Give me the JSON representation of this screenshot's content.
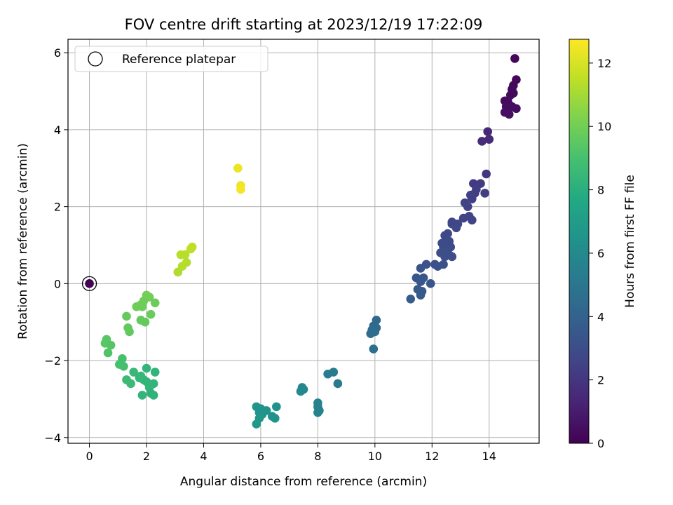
{
  "chart_data": {
    "type": "scatter",
    "title": "FOV centre drift starting at 2023/12/19 17:22:09",
    "xlabel": "Angular distance from reference (arcmin)",
    "ylabel": "Rotation from reference (arcmin)",
    "xlim": [
      -0.75,
      15.75
    ],
    "ylim": [
      -4.15,
      6.35
    ],
    "xticks": [
      "0",
      "2",
      "4",
      "6",
      "8",
      "10",
      "12",
      "14"
    ],
    "yticks": [
      "−4",
      "−2",
      "0",
      "2",
      "4",
      "6"
    ],
    "grid": true,
    "legend": {
      "placement": "top-left",
      "entries": [
        "Reference platepar"
      ]
    },
    "colorbar": {
      "label": "Hours from first FF file",
      "colormap": "viridis",
      "range": [
        0,
        12.75
      ],
      "ticks": [
        "0",
        "2",
        "4",
        "6",
        "8",
        "10",
        "12"
      ]
    },
    "reference_point": {
      "x": 0,
      "y": 0
    },
    "points": [
      {
        "x": 14.9,
        "y": 5.85,
        "c": 0.2
      },
      {
        "x": 14.95,
        "y": 5.3,
        "c": 0.25
      },
      {
        "x": 14.85,
        "y": 5.15,
        "c": 0.3
      },
      {
        "x": 14.8,
        "y": 5.05,
        "c": 0.3
      },
      {
        "x": 14.75,
        "y": 4.9,
        "c": 0.35
      },
      {
        "x": 14.85,
        "y": 4.95,
        "c": 0.3
      },
      {
        "x": 14.65,
        "y": 4.75,
        "c": 0.4
      },
      {
        "x": 14.55,
        "y": 4.75,
        "c": 0.4
      },
      {
        "x": 14.7,
        "y": 4.65,
        "c": 0.4
      },
      {
        "x": 14.6,
        "y": 4.6,
        "c": 0.45
      },
      {
        "x": 14.8,
        "y": 4.6,
        "c": 0.45
      },
      {
        "x": 14.95,
        "y": 4.55,
        "c": 0.45
      },
      {
        "x": 14.55,
        "y": 4.45,
        "c": 0.5
      },
      {
        "x": 14.7,
        "y": 4.4,
        "c": 0.5
      },
      {
        "x": 13.95,
        "y": 3.95,
        "c": 1.4
      },
      {
        "x": 14.0,
        "y": 3.75,
        "c": 1.5
      },
      {
        "x": 13.75,
        "y": 3.7,
        "c": 1.6
      },
      {
        "x": 13.9,
        "y": 2.85,
        "c": 2.0
      },
      {
        "x": 13.45,
        "y": 2.6,
        "c": 2.2
      },
      {
        "x": 13.7,
        "y": 2.6,
        "c": 2.2
      },
      {
        "x": 13.55,
        "y": 2.45,
        "c": 2.3
      },
      {
        "x": 13.5,
        "y": 2.35,
        "c": 2.3
      },
      {
        "x": 13.85,
        "y": 2.35,
        "c": 2.3
      },
      {
        "x": 13.35,
        "y": 2.3,
        "c": 2.4
      },
      {
        "x": 13.4,
        "y": 2.2,
        "c": 2.4
      },
      {
        "x": 13.15,
        "y": 2.1,
        "c": 2.5
      },
      {
        "x": 13.25,
        "y": 2.0,
        "c": 2.5
      },
      {
        "x": 13.1,
        "y": 1.7,
        "c": 2.6
      },
      {
        "x": 13.3,
        "y": 1.75,
        "c": 2.6
      },
      {
        "x": 13.4,
        "y": 1.65,
        "c": 2.6
      },
      {
        "x": 12.7,
        "y": 1.6,
        "c": 2.7
      },
      {
        "x": 12.7,
        "y": 1.55,
        "c": 2.7
      },
      {
        "x": 12.9,
        "y": 1.55,
        "c": 2.7
      },
      {
        "x": 12.85,
        "y": 1.45,
        "c": 2.8
      },
      {
        "x": 12.55,
        "y": 1.3,
        "c": 2.8
      },
      {
        "x": 12.45,
        "y": 1.25,
        "c": 2.8
      },
      {
        "x": 12.35,
        "y": 1.05,
        "c": 2.9
      },
      {
        "x": 12.6,
        "y": 1.1,
        "c": 2.9
      },
      {
        "x": 12.4,
        "y": 0.95,
        "c": 2.9
      },
      {
        "x": 12.65,
        "y": 0.95,
        "c": 2.9
      },
      {
        "x": 12.5,
        "y": 0.85,
        "c": 3.0
      },
      {
        "x": 12.3,
        "y": 0.8,
        "c": 3.0
      },
      {
        "x": 12.6,
        "y": 0.75,
        "c": 3.0
      },
      {
        "x": 12.45,
        "y": 0.7,
        "c": 3.0
      },
      {
        "x": 12.7,
        "y": 0.7,
        "c": 3.0
      },
      {
        "x": 11.8,
        "y": 0.5,
        "c": 3.2
      },
      {
        "x": 12.1,
        "y": 0.5,
        "c": 3.1
      },
      {
        "x": 12.4,
        "y": 0.5,
        "c": 3.1
      },
      {
        "x": 12.2,
        "y": 0.45,
        "c": 3.1
      },
      {
        "x": 11.6,
        "y": 0.4,
        "c": 3.3
      },
      {
        "x": 11.45,
        "y": 0.15,
        "c": 3.4
      },
      {
        "x": 11.7,
        "y": 0.15,
        "c": 3.4
      },
      {
        "x": 11.6,
        "y": 0.05,
        "c": 3.5
      },
      {
        "x": 11.95,
        "y": 0.0,
        "c": 3.4
      },
      {
        "x": 11.5,
        "y": -0.15,
        "c": 3.5
      },
      {
        "x": 11.65,
        "y": -0.2,
        "c": 3.6
      },
      {
        "x": 11.6,
        "y": -0.3,
        "c": 3.6
      },
      {
        "x": 11.25,
        "y": -0.4,
        "c": 3.7
      },
      {
        "x": 10.05,
        "y": -0.95,
        "c": 4.3
      },
      {
        "x": 9.95,
        "y": -1.1,
        "c": 4.4
      },
      {
        "x": 10.05,
        "y": -1.15,
        "c": 4.4
      },
      {
        "x": 9.9,
        "y": -1.2,
        "c": 4.5
      },
      {
        "x": 10.0,
        "y": -1.25,
        "c": 4.5
      },
      {
        "x": 9.85,
        "y": -1.3,
        "c": 4.5
      },
      {
        "x": 9.95,
        "y": -1.7,
        "c": 4.6
      },
      {
        "x": 8.35,
        "y": -2.35,
        "c": 5.3
      },
      {
        "x": 8.55,
        "y": -2.3,
        "c": 5.3
      },
      {
        "x": 8.7,
        "y": -2.6,
        "c": 5.2
      },
      {
        "x": 7.45,
        "y": -2.7,
        "c": 5.8
      },
      {
        "x": 7.5,
        "y": -2.75,
        "c": 5.8
      },
      {
        "x": 7.4,
        "y": -2.8,
        "c": 5.9
      },
      {
        "x": 8.0,
        "y": -3.1,
        "c": 5.6
      },
      {
        "x": 8.0,
        "y": -3.2,
        "c": 5.6
      },
      {
        "x": 8.05,
        "y": -3.3,
        "c": 5.6
      },
      {
        "x": 8.0,
        "y": -3.35,
        "c": 5.6
      },
      {
        "x": 5.85,
        "y": -3.2,
        "c": 6.6
      },
      {
        "x": 6.0,
        "y": -3.25,
        "c": 6.6
      },
      {
        "x": 6.55,
        "y": -3.2,
        "c": 6.4
      },
      {
        "x": 6.2,
        "y": -3.3,
        "c": 6.5
      },
      {
        "x": 5.95,
        "y": -3.35,
        "c": 6.6
      },
      {
        "x": 6.05,
        "y": -3.4,
        "c": 6.6
      },
      {
        "x": 6.4,
        "y": -3.45,
        "c": 6.5
      },
      {
        "x": 6.5,
        "y": -3.5,
        "c": 6.5
      },
      {
        "x": 5.95,
        "y": -3.5,
        "c": 6.7
      },
      {
        "x": 5.85,
        "y": -3.65,
        "c": 6.8
      },
      {
        "x": 1.3,
        "y": -2.5,
        "c": 8.6
      },
      {
        "x": 1.45,
        "y": -2.6,
        "c": 8.6
      },
      {
        "x": 1.55,
        "y": -2.3,
        "c": 8.5
      },
      {
        "x": 1.75,
        "y": -2.45,
        "c": 8.4
      },
      {
        "x": 1.9,
        "y": -2.5,
        "c": 8.4
      },
      {
        "x": 1.8,
        "y": -2.4,
        "c": 8.4
      },
      {
        "x": 2.0,
        "y": -2.2,
        "c": 8.3
      },
      {
        "x": 2.3,
        "y": -2.3,
        "c": 8.3
      },
      {
        "x": 2.0,
        "y": -2.55,
        "c": 8.3
      },
      {
        "x": 2.25,
        "y": -2.6,
        "c": 8.3
      },
      {
        "x": 2.1,
        "y": -2.7,
        "c": 8.3
      },
      {
        "x": 2.15,
        "y": -2.85,
        "c": 8.2
      },
      {
        "x": 1.85,
        "y": -2.9,
        "c": 8.3
      },
      {
        "x": 2.25,
        "y": -2.9,
        "c": 8.2
      },
      {
        "x": 0.6,
        "y": -1.45,
        "c": 9.4
      },
      {
        "x": 0.55,
        "y": -1.55,
        "c": 9.4
      },
      {
        "x": 0.75,
        "y": -1.6,
        "c": 9.3
      },
      {
        "x": 0.65,
        "y": -1.8,
        "c": 9.2
      },
      {
        "x": 1.15,
        "y": -1.95,
        "c": 9.0
      },
      {
        "x": 1.05,
        "y": -2.1,
        "c": 9.0
      },
      {
        "x": 1.2,
        "y": -2.15,
        "c": 9.0
      },
      {
        "x": 1.3,
        "y": -0.85,
        "c": 9.7
      },
      {
        "x": 1.35,
        "y": -1.15,
        "c": 9.6
      },
      {
        "x": 1.4,
        "y": -1.25,
        "c": 9.6
      },
      {
        "x": 1.65,
        "y": -0.6,
        "c": 9.9
      },
      {
        "x": 1.8,
        "y": -0.55,
        "c": 9.9
      },
      {
        "x": 1.9,
        "y": -0.45,
        "c": 9.9
      },
      {
        "x": 1.85,
        "y": -0.6,
        "c": 9.9
      },
      {
        "x": 2.0,
        "y": -0.3,
        "c": 10.0
      },
      {
        "x": 2.1,
        "y": -0.35,
        "c": 10.0
      },
      {
        "x": 2.3,
        "y": -0.5,
        "c": 9.9
      },
      {
        "x": 2.15,
        "y": -0.8,
        "c": 9.8
      },
      {
        "x": 1.8,
        "y": -0.95,
        "c": 9.7
      },
      {
        "x": 1.95,
        "y": -1.0,
        "c": 9.7
      },
      {
        "x": 3.1,
        "y": 0.3,
        "c": 11.2
      },
      {
        "x": 3.25,
        "y": 0.45,
        "c": 11.3
      },
      {
        "x": 3.4,
        "y": 0.55,
        "c": 11.3
      },
      {
        "x": 3.2,
        "y": 0.75,
        "c": 11.4
      },
      {
        "x": 3.35,
        "y": 0.75,
        "c": 11.4
      },
      {
        "x": 3.55,
        "y": 0.9,
        "c": 11.5
      },
      {
        "x": 3.6,
        "y": 0.95,
        "c": 11.5
      },
      {
        "x": 5.2,
        "y": 3.0,
        "c": 12.4
      },
      {
        "x": 5.3,
        "y": 2.55,
        "c": 12.5
      },
      {
        "x": 5.3,
        "y": 2.45,
        "c": 12.6
      }
    ]
  }
}
